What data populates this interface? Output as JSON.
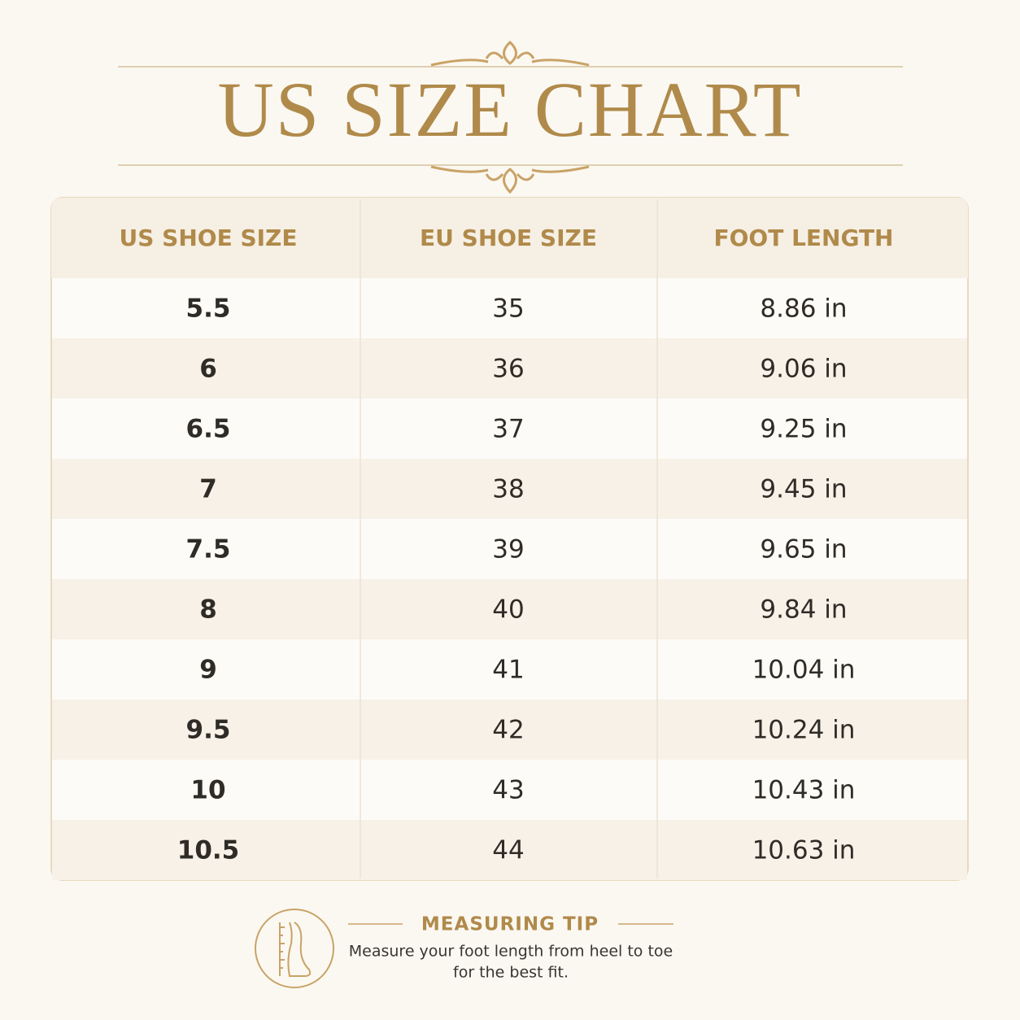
{
  "header": {
    "title": "US SIZE CHART"
  },
  "table": {
    "columns": [
      "US SHOE SIZE",
      "EU SHOE SIZE",
      "FOOT LENGTH"
    ],
    "rows": [
      [
        "5.5",
        "35",
        "8.86 in"
      ],
      [
        "6",
        "36",
        "9.06 in"
      ],
      [
        "6.5",
        "37",
        "9.25 in"
      ],
      [
        "7",
        "38",
        "9.45 in"
      ],
      [
        "7.5",
        "39",
        "9.65 in"
      ],
      [
        "8",
        "40",
        "9.84 in"
      ],
      [
        "9",
        "41",
        "10.04 in"
      ],
      [
        "9.5",
        "42",
        "10.24 in"
      ],
      [
        "10",
        "43",
        "10.43 in"
      ],
      [
        "10.5",
        "44",
        "10.63 in"
      ]
    ]
  },
  "tip": {
    "title": "MEASURING TIP",
    "lines": [
      "Measure your foot length from heel to toe",
      "for the best fit."
    ]
  }
}
